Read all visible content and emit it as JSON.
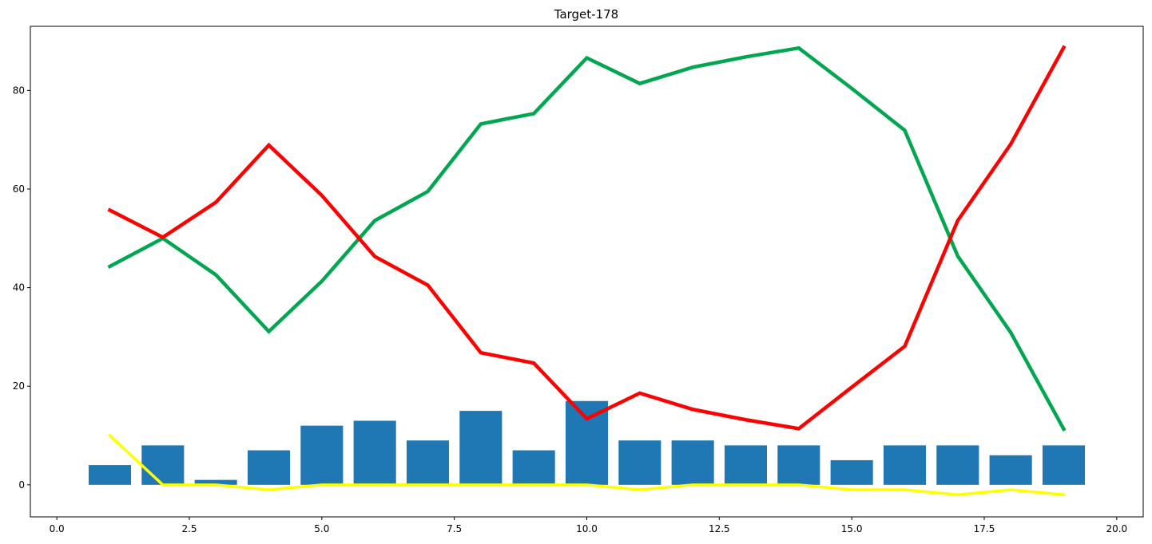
{
  "chart_data": {
    "type": "bar",
    "title": "Target-178",
    "xlabel": "",
    "ylabel": "",
    "xlim": [
      -0.5,
      20.5
    ],
    "ylim": [
      -6.5,
      93
    ],
    "xticks": [
      0.0,
      2.5,
      5.0,
      7.5,
      10.0,
      12.5,
      15.0,
      17.5,
      20.0
    ],
    "xtick_labels": [
      "0.0",
      "2.5",
      "5.0",
      "7.5",
      "10.0",
      "12.5",
      "15.0",
      "17.5",
      "20.0"
    ],
    "yticks": [
      0,
      20,
      40,
      60,
      80
    ],
    "ytick_labels": [
      "0",
      "20",
      "40",
      "60",
      "80"
    ],
    "grid": false,
    "x": [
      1,
      2,
      3,
      4,
      5,
      6,
      7,
      8,
      9,
      10,
      11,
      12,
      13,
      14,
      15,
      16,
      17,
      18,
      19
    ],
    "bars": {
      "color": "#1f77b4",
      "values": [
        4,
        8,
        1,
        7,
        12,
        13,
        9,
        15,
        7,
        17,
        9,
        9,
        8,
        8,
        5,
        8,
        8,
        6,
        8
      ]
    },
    "series": [
      {
        "color": "#00a650",
        "values": [
          44.3,
          50,
          42.6,
          31.1,
          41.3,
          53.6,
          59.5,
          73.2,
          75.3,
          86.6,
          81.4,
          84.7,
          86.8,
          88.6,
          80.4,
          71.9,
          46.4,
          30.9,
          11.3
        ]
      },
      {
        "color": "#ff0000",
        "values": [
          55.7,
          50.2,
          57.3,
          68.9,
          58.7,
          46.3,
          40.5,
          26.8,
          24.7,
          13.4,
          18.6,
          15.3,
          13.2,
          11.4,
          19.8,
          28.1,
          53.6,
          69.1,
          88.7
        ]
      },
      {
        "color": "#ffff00",
        "values": [
          10,
          0,
          0,
          -1,
          0,
          0,
          0,
          0,
          0,
          0,
          -1,
          0,
          0,
          0,
          -1,
          -1,
          -2,
          -1,
          -2
        ]
      }
    ]
  }
}
